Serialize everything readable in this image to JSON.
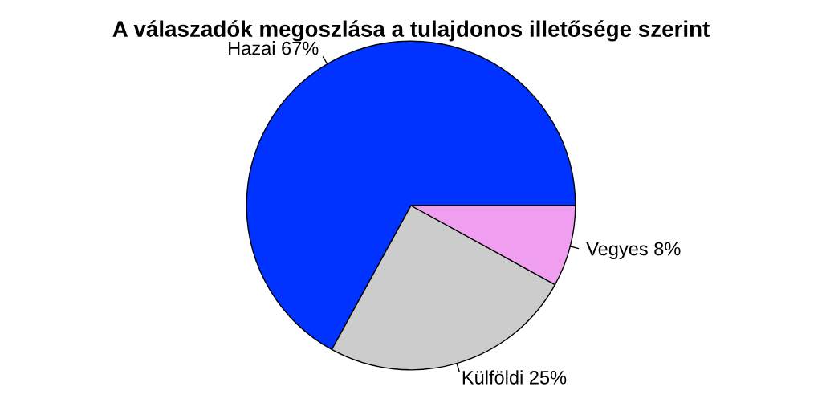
{
  "chart_data": {
    "type": "pie",
    "title": "A válaszadók megoszlása a tulajdonos illetősége szerint",
    "categories": [
      "Hazai",
      "Külföldi",
      "Vegyes"
    ],
    "values": [
      67,
      25,
      8
    ],
    "value_labels": [
      "67%",
      "25%",
      "8%"
    ],
    "colors": [
      "#0033ff",
      "#cccccc",
      "#f09ef0"
    ]
  }
}
